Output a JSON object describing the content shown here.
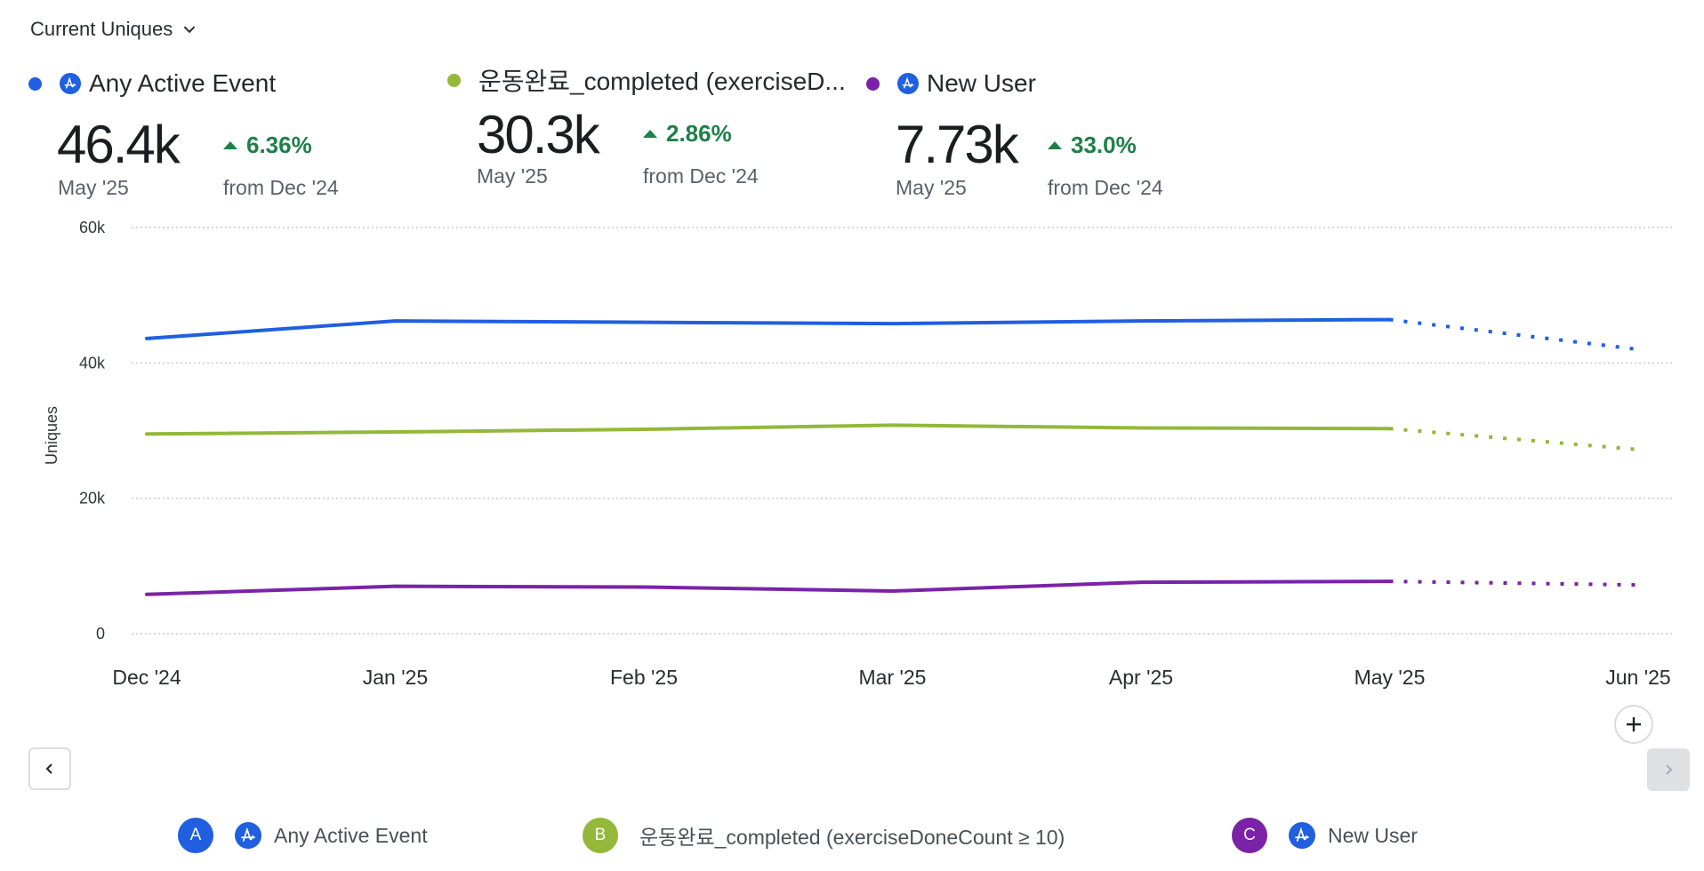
{
  "metric_selector": {
    "label": "Current Uniques",
    "icon": "chevron-down-icon"
  },
  "stats": [
    {
      "name": "Any Active Event",
      "color": "#1f5fe0",
      "has_amp_icon": true,
      "value": "46.4k",
      "period": "May '25",
      "delta": "6.36%",
      "delta_direction": "up",
      "delta_ref": "from Dec '24"
    },
    {
      "name": "운동완료_completed (exerciseD...",
      "color": "#93b83a",
      "has_amp_icon": false,
      "value": "30.3k",
      "period": "May '25",
      "delta": "2.86%",
      "delta_direction": "up",
      "delta_ref": "from Dec '24"
    },
    {
      "name": "New User",
      "color": "#7b22a8",
      "has_amp_icon": true,
      "value": "7.73k",
      "period": "May '25",
      "delta": "33.0%",
      "delta_direction": "up",
      "delta_ref": "from Dec '24"
    }
  ],
  "controls": {
    "add_icon": "plus-icon",
    "prev_icon": "chevron-left-icon",
    "next_icon": "chevron-right-icon"
  },
  "legend": [
    {
      "badge": "A",
      "color": "#1f5fe0",
      "has_amp_icon": true,
      "label": "Any Active Event"
    },
    {
      "badge": "B",
      "color": "#93b83a",
      "has_amp_icon": false,
      "label": "운동완료_completed (exerciseDoneCount ≥ 10)"
    },
    {
      "badge": "C",
      "color": "#7b22a8",
      "has_amp_icon": true,
      "label": "New User"
    }
  ],
  "chart_data": {
    "type": "line",
    "title": "",
    "xlabel": "",
    "ylabel": "Uniques",
    "x": [
      "Dec '24",
      "Jan '25",
      "Feb '25",
      "Mar '25",
      "Apr '25",
      "May '25",
      "Jun '25"
    ],
    "yticks": [
      "0",
      "20k",
      "40k",
      "60k"
    ],
    "ytick_values": [
      0,
      20000,
      40000,
      60000
    ],
    "ylim": [
      0,
      60000
    ],
    "grid": true,
    "projected_from_index": 5,
    "series": [
      {
        "name": "Any Active Event",
        "color": "#1f5fe0",
        "values": [
          43600,
          46200,
          46000,
          45800,
          46200,
          46400,
          42000
        ]
      },
      {
        "name": "운동완료_completed (exerciseDoneCount ≥ 10)",
        "color": "#93b83a",
        "values": [
          29500,
          29800,
          30200,
          30800,
          30400,
          30300,
          27200
        ]
      },
      {
        "name": "New User",
        "color": "#7b22a8",
        "values": [
          5810,
          7000,
          6900,
          6300,
          7600,
          7730,
          7200
        ]
      }
    ]
  }
}
